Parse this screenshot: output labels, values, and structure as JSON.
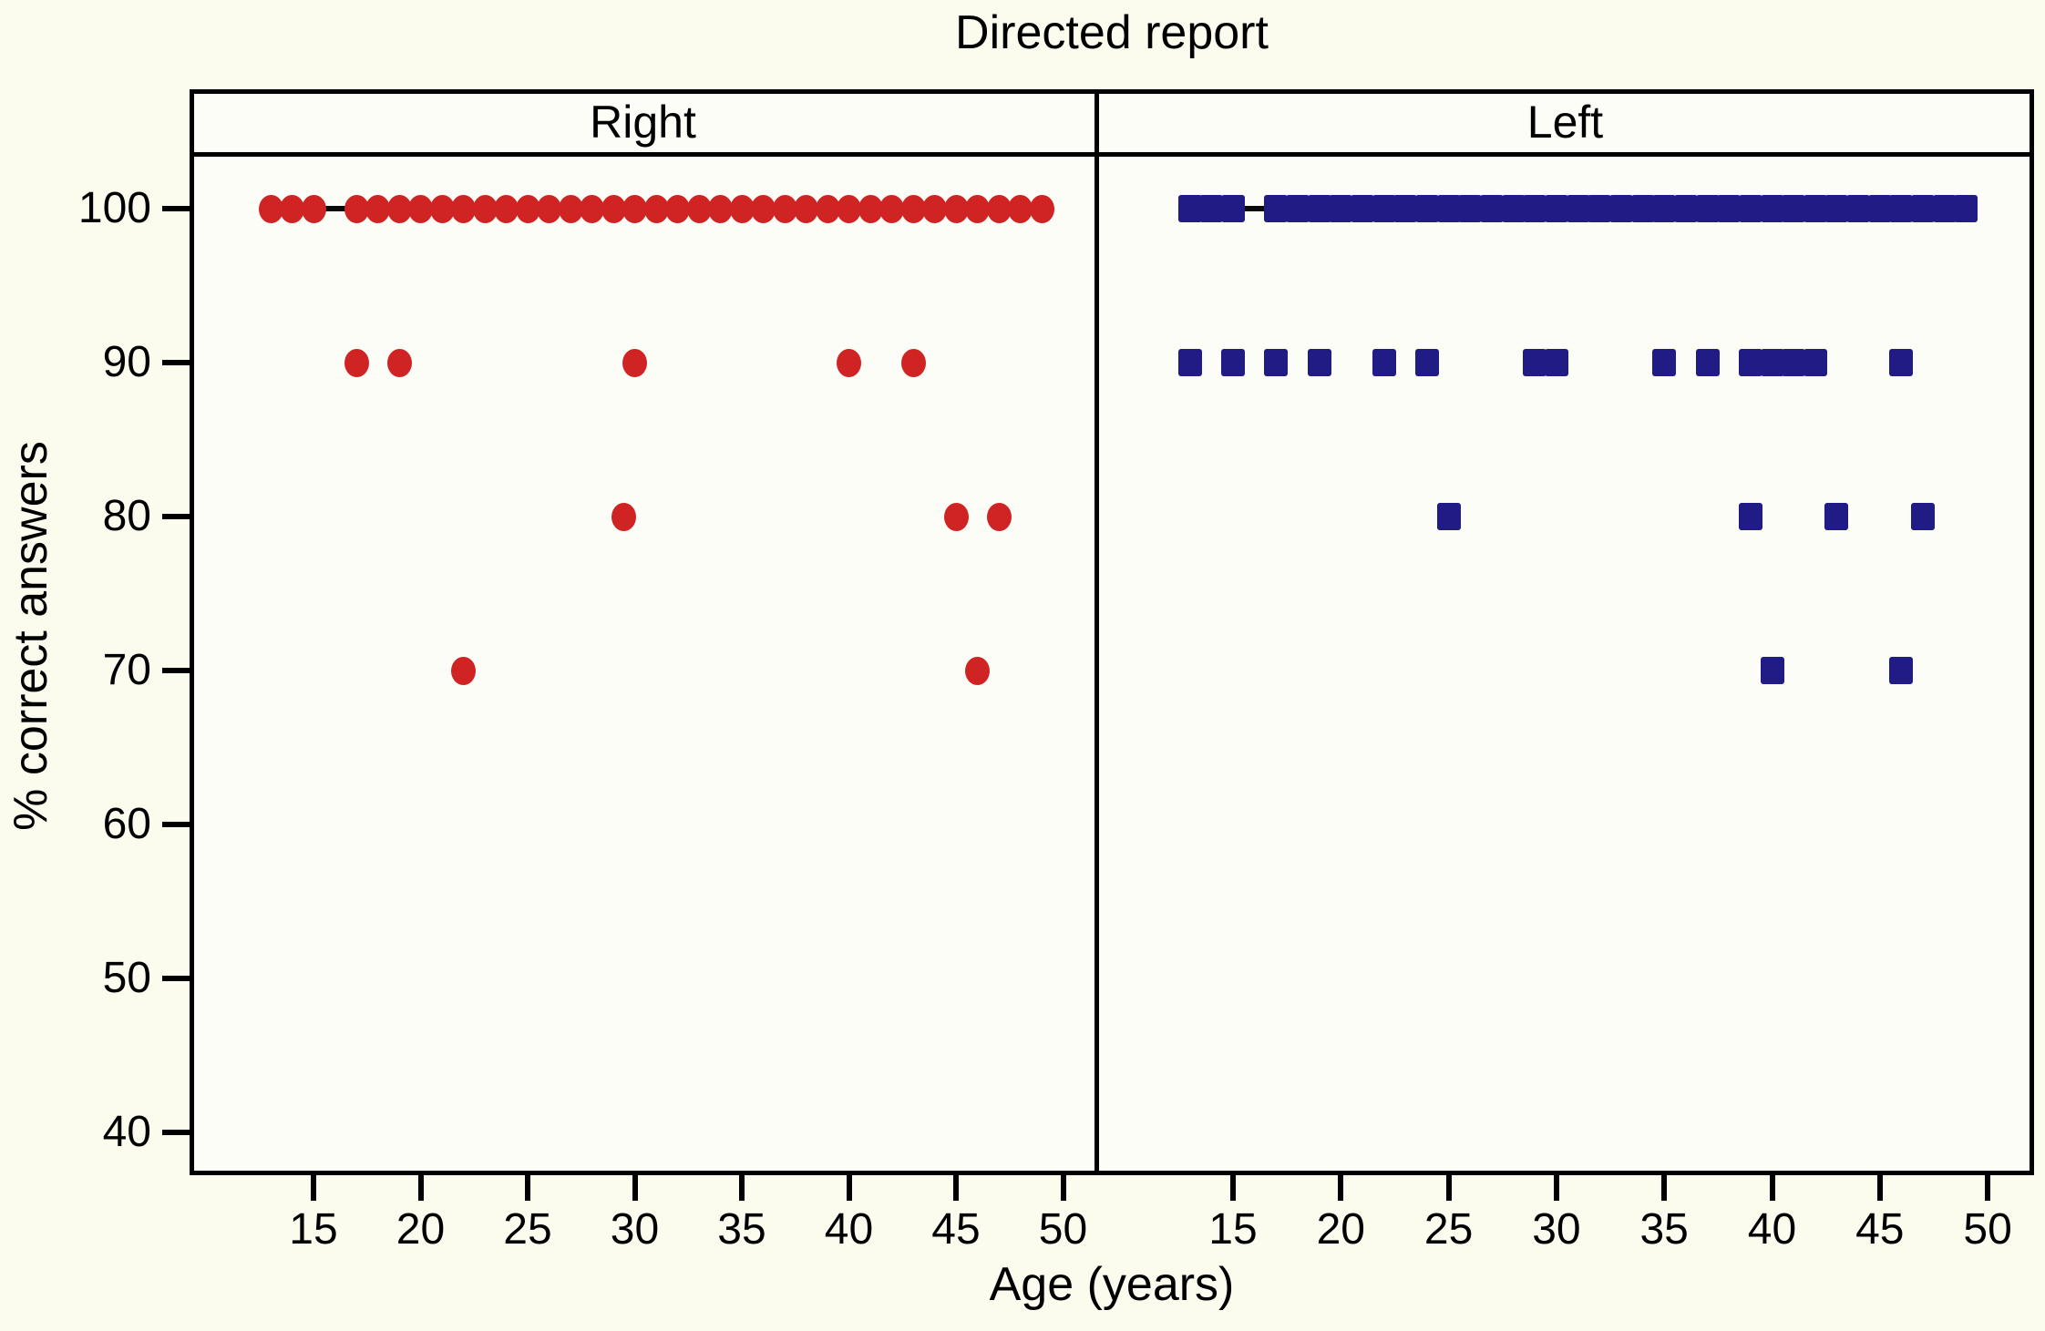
{
  "title": "Directed report",
  "axes": {
    "xlabel": "Age (years)",
    "ylabel": "% correct answers"
  },
  "colors": {
    "right_marker": "#d02323",
    "left_marker": "#211b86",
    "line": "#0a0a0a",
    "background": "#fbfcee"
  },
  "chart_data": {
    "type": "scatter",
    "title": "Directed report",
    "xlabel": "Age (years)",
    "ylabel": "% correct answers",
    "xticks": [
      15,
      20,
      25,
      30,
      35,
      40,
      45,
      50
    ],
    "yticks": [
      40,
      50,
      60,
      70,
      80,
      90,
      100
    ],
    "xlim": [
      9.5,
      51.5
    ],
    "ylim": [
      37,
      104
    ],
    "grid": false,
    "layout": "two side-by-side panels sharing y axis",
    "panels": [
      {
        "label": "Right",
        "marker": "circle",
        "color": "#d02323",
        "reference_line": {
          "y": 100,
          "x_from": 13,
          "x_to": 49
        },
        "groups": [
          {
            "value": 100,
            "ages": [
              13,
              14,
              15,
              17,
              18,
              19,
              20,
              21,
              22,
              23,
              24,
              25,
              26,
              27,
              28,
              29,
              30,
              31,
              32,
              33,
              34,
              35,
              36,
              37,
              38,
              39,
              40,
              41,
              42,
              43,
              44,
              45,
              46,
              47,
              48,
              49
            ]
          },
          {
            "value": 90,
            "ages": [
              17,
              19,
              30,
              40,
              43
            ]
          },
          {
            "value": 80,
            "ages": [
              29.5,
              45,
              47
            ]
          },
          {
            "value": 70,
            "ages": [
              22,
              46
            ]
          }
        ]
      },
      {
        "label": "Left",
        "marker": "square",
        "color": "#211b86",
        "reference_line": {
          "y": 100,
          "x_from": 13,
          "x_to": 49
        },
        "groups": [
          {
            "value": 100,
            "ages": [
              13,
              14,
              15,
              17,
              18,
              19,
              20,
              21,
              22,
              23,
              24,
              25,
              26,
              27,
              28,
              29,
              30,
              31,
              32,
              33,
              34,
              35,
              36,
              37,
              38,
              39,
              40,
              41,
              42,
              43,
              44,
              45,
              46,
              47,
              48,
              49
            ]
          },
          {
            "value": 90,
            "ages": [
              13,
              15,
              17,
              19,
              22,
              24,
              29,
              30,
              35,
              37,
              39,
              40,
              41,
              42,
              46
            ]
          },
          {
            "value": 80,
            "ages": [
              25,
              39,
              43,
              47
            ]
          },
          {
            "value": 70,
            "ages": [
              40,
              46
            ]
          }
        ]
      }
    ]
  }
}
